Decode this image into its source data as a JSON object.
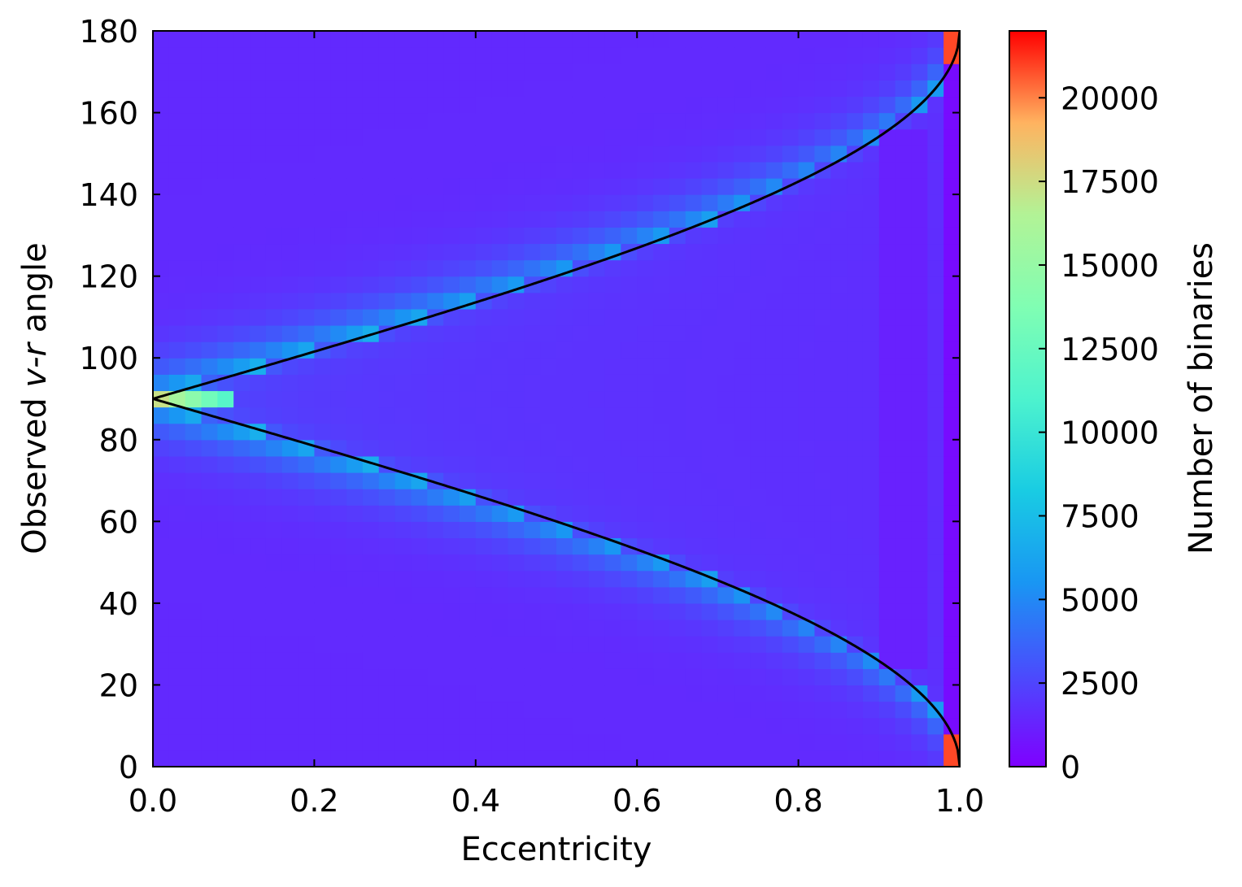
{
  "chart_data": {
    "type": "heatmap",
    "xlabel": "Eccentricity",
    "ylabel": {
      "pre": "Observed ",
      "italic": "v-r",
      "post": " angle"
    },
    "xlim": [
      0.0,
      1.0
    ],
    "ylim": [
      0,
      180
    ],
    "xticks": [
      "0.0",
      "0.2",
      "0.4",
      "0.6",
      "0.8",
      "1.0"
    ],
    "yticks": [
      "0",
      "20",
      "40",
      "60",
      "80",
      "100",
      "120",
      "140",
      "160",
      "180"
    ],
    "x_bins": 50,
    "y_bins": 45,
    "colormap": "rainbow",
    "colorbar": {
      "label": "Number of binaries",
      "range": [
        0,
        22000
      ],
      "ticks": [
        "0",
        "2500",
        "5000",
        "7500",
        "10000",
        "12500",
        "15000",
        "17500",
        "20000"
      ]
    },
    "density_model": {
      "description": "counts peak along curve angle = arccos(-e)/arccos(e) envelope",
      "peak_at_e0_angle90": 18000,
      "peak_at_e1_edges": 22000,
      "background": 1500
    },
    "curves": [
      {
        "name": "",
        "relation": "angle = arccos(-e) in degrees",
        "color": "#000000"
      },
      {
        "name": "",
        "relation": "angle = arccos(e) in degrees",
        "color": "#000000"
      }
    ]
  }
}
